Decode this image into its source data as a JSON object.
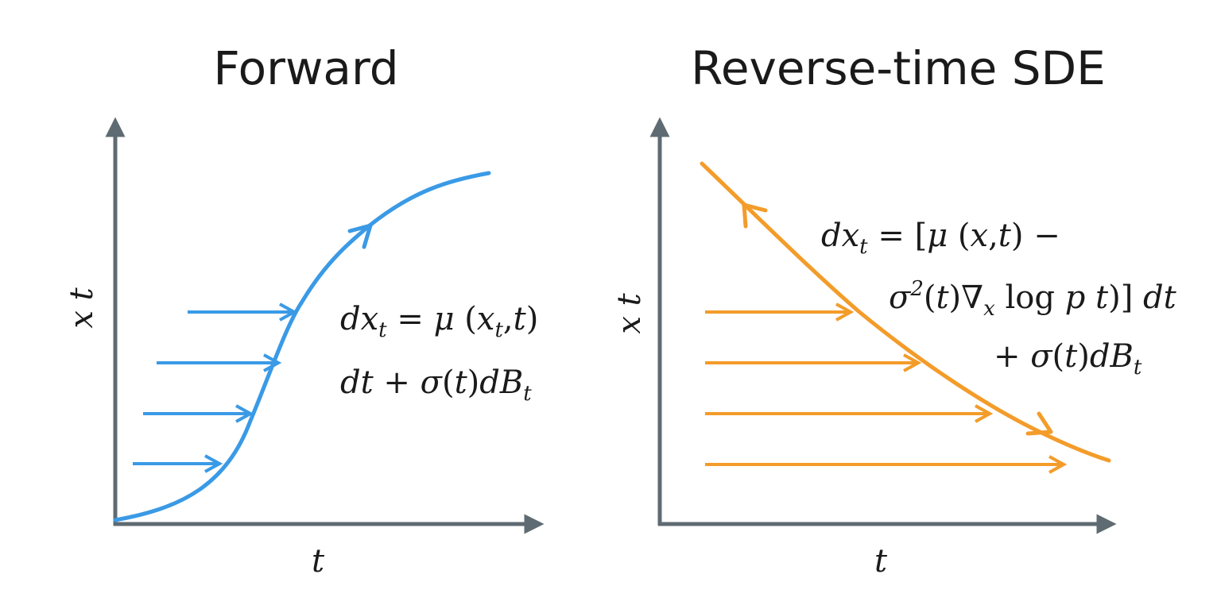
{
  "colors": {
    "forward": "#3a9ae6",
    "reverse": "#f39c2a",
    "axis": "#5f6b72",
    "text": "#1a1a1a"
  },
  "panels": [
    {
      "title": "Forward",
      "x_axis_label": "t",
      "y_axis_label": "x t",
      "equation_lines": [
        "dx_t = μ (x_t,t)",
        "dt + σ(t) dB_t"
      ]
    },
    {
      "title": "Reverse-time SDE",
      "x_axis_label": "t",
      "y_axis_label": "x t",
      "equation_lines": [
        "dx_t = [μ (x,t) −",
        "σ²(t)∇ₓ log p t)] dt",
        "+ σ(t) dB_t"
      ]
    }
  ]
}
